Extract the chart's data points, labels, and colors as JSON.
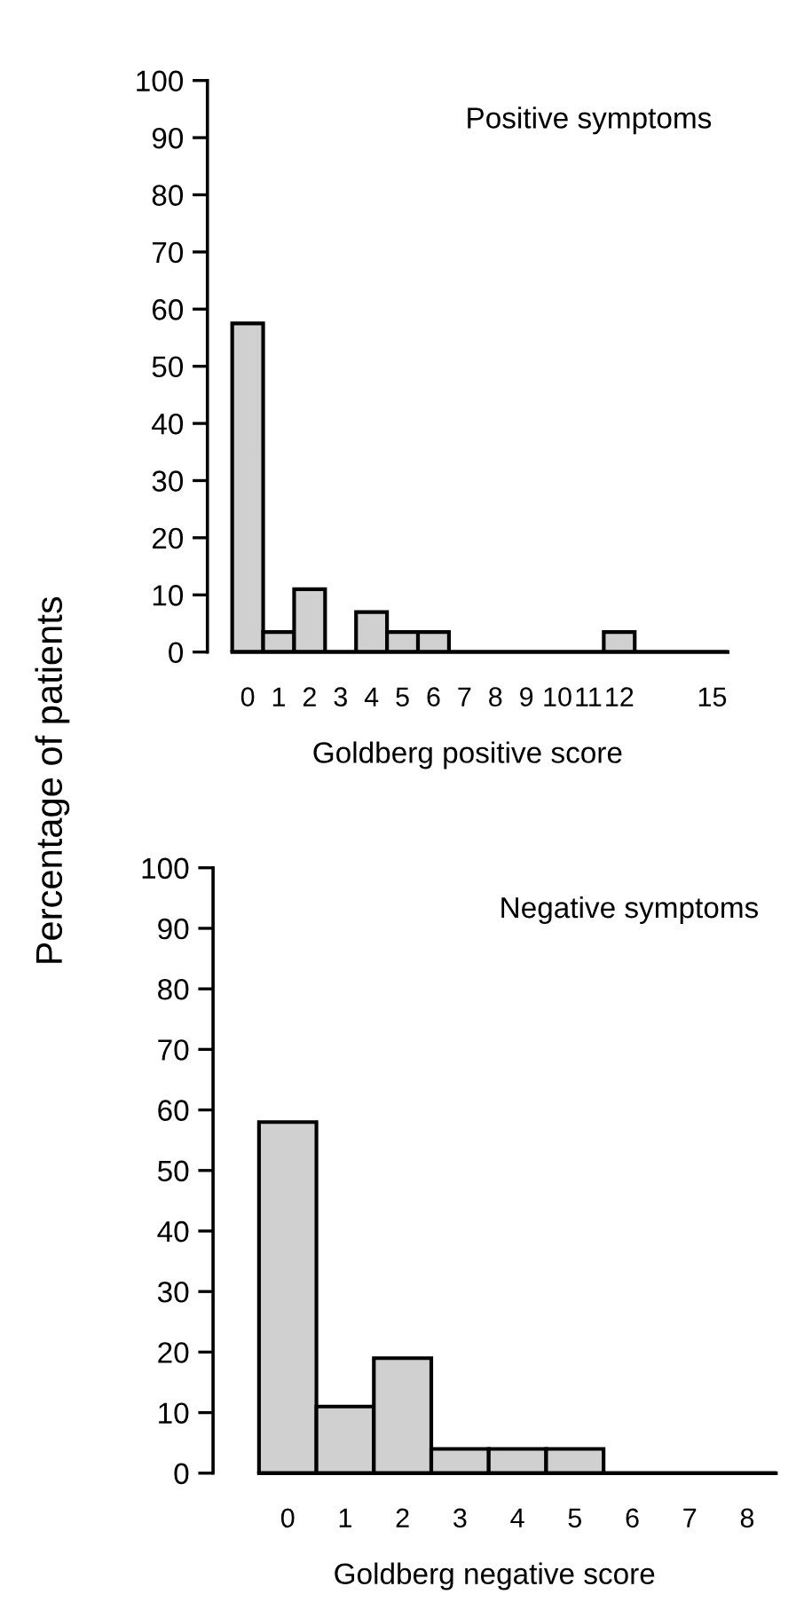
{
  "chart_data": [
    {
      "type": "bar",
      "title": "Positive symptoms",
      "xlabel": "Goldberg positive score",
      "ylabel": "Percentage of patients",
      "categories": [
        "0",
        "1",
        "2",
        "3",
        "4",
        "5",
        "6",
        "7",
        "8",
        "9",
        "10",
        "11",
        "12",
        null,
        null,
        "15"
      ],
      "values": [
        57.5,
        3.5,
        11,
        0,
        7,
        3.5,
        3.5,
        0,
        0,
        0,
        0,
        0,
        3.5,
        0,
        0,
        0
      ],
      "color": "#d0d0d0",
      "ylim": [
        0,
        100
      ],
      "yticks": [
        0,
        10,
        20,
        30,
        40,
        50,
        60,
        70,
        80,
        90,
        100
      ],
      "grid": false,
      "legend": false
    },
    {
      "type": "bar",
      "title": "Negative symptoms",
      "xlabel": "Goldberg negative score",
      "categories": [
        "0",
        "1",
        "2",
        "3",
        "4",
        "5",
        "6",
        "7",
        "8"
      ],
      "values": [
        58,
        11,
        19,
        4,
        4,
        4,
        0,
        0,
        0
      ],
      "color": "#d0d0d0",
      "ylim": [
        0,
        100
      ],
      "yticks": [
        0,
        10,
        20,
        30,
        40,
        50,
        60,
        70,
        80,
        90,
        100
      ],
      "grid": false,
      "legend": false
    }
  ]
}
